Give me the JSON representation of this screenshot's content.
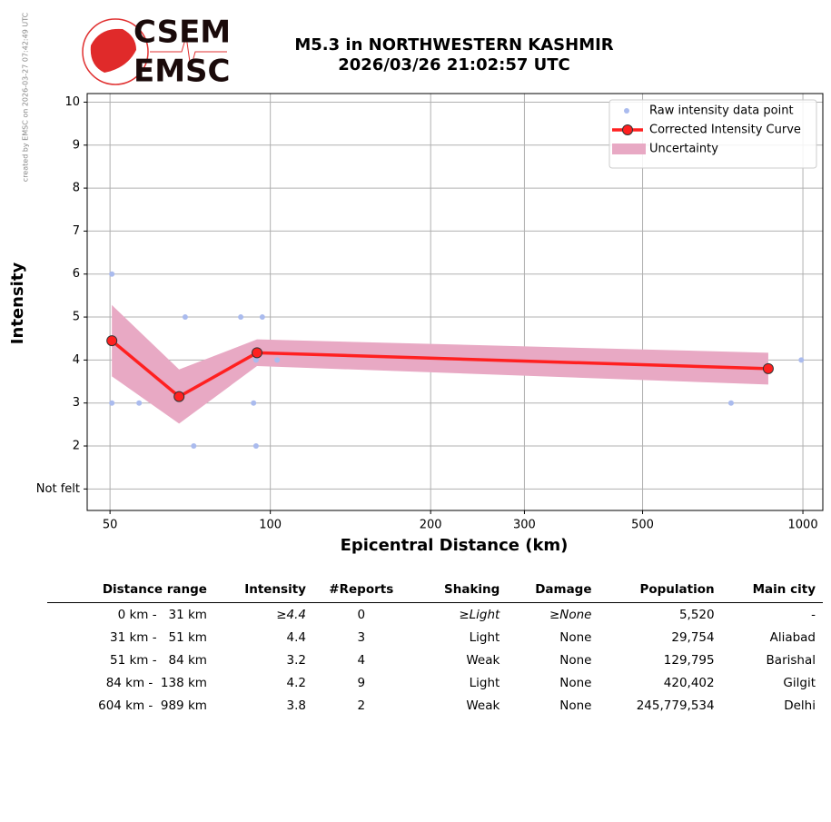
{
  "logo": {
    "top": "CSEM",
    "bottom": "EMSC"
  },
  "credit": "created by EMSC on 2026-03-27 07:42:49 UTC",
  "chart_data": {
    "type": "line",
    "title": "M5.3 in NORTHWESTERN KASHMIR",
    "subtitle": "2026/03/26 21:02:57 UTC",
    "x_label": "Epicentral Distance (km)",
    "y_label": "Intensity",
    "x_scale": "log",
    "grid": true,
    "legend": "upper right",
    "xlim": [
      45.3,
      1090
    ],
    "ylim": [
      0.5,
      10.2
    ],
    "xticks": [
      50,
      100,
      200,
      300,
      500,
      1000
    ],
    "yticks": [
      {
        "value": 1,
        "label": "Not felt"
      },
      2,
      3,
      4,
      5,
      6,
      7,
      8,
      9,
      10
    ],
    "series": [
      {
        "name": "Uncertainty",
        "type": "band",
        "color": "#e8a9c4",
        "x": [
          50.4,
          67.4,
          94.4,
          861
        ],
        "lower": [
          3.62,
          2.52,
          3.86,
          3.43
        ],
        "upper": [
          5.28,
          3.78,
          4.48,
          4.17
        ]
      },
      {
        "name": "Raw intensity data point",
        "type": "scatter",
        "color": "#aabbee",
        "x": [
          50.4,
          50.4,
          56.7,
          69.2,
          71.8,
          88,
          93,
          94,
          96.6,
          94,
          103,
          733,
          993
        ],
        "values": [
          6,
          3,
          3,
          5,
          2,
          5,
          3,
          2,
          5,
          4,
          4,
          3,
          4
        ]
      },
      {
        "name": "Corrected Intensity Curve",
        "type": "line",
        "color": "#ff2020",
        "x": [
          50.4,
          67.4,
          94.4,
          861
        ],
        "values": [
          4.45,
          3.15,
          4.17,
          3.8
        ]
      }
    ]
  },
  "table": {
    "header": [
      "Distance range",
      "Intensity",
      "#Reports",
      "Shaking",
      "Damage",
      "Population",
      "Main city"
    ],
    "rows": [
      [
        "0 km -   31 km",
        "≥4.4",
        "0",
        "≥Light",
        "≥None",
        "5,520",
        "-"
      ],
      [
        "31 km -   51 km",
        "4.4",
        "3",
        "Light",
        "None",
        "29,754",
        "Aliabad"
      ],
      [
        "51 km -   84 km",
        "3.2",
        "4",
        "Weak",
        "None",
        "129,795",
        "Barishal"
      ],
      [
        "84 km -  138 km",
        "4.2",
        "9",
        "Light",
        "None",
        "420,402",
        "Gilgit"
      ],
      [
        "604 km -  989 km",
        "3.8",
        "2",
        "Weak",
        "None",
        "245,779,534",
        "Delhi"
      ]
    ]
  }
}
